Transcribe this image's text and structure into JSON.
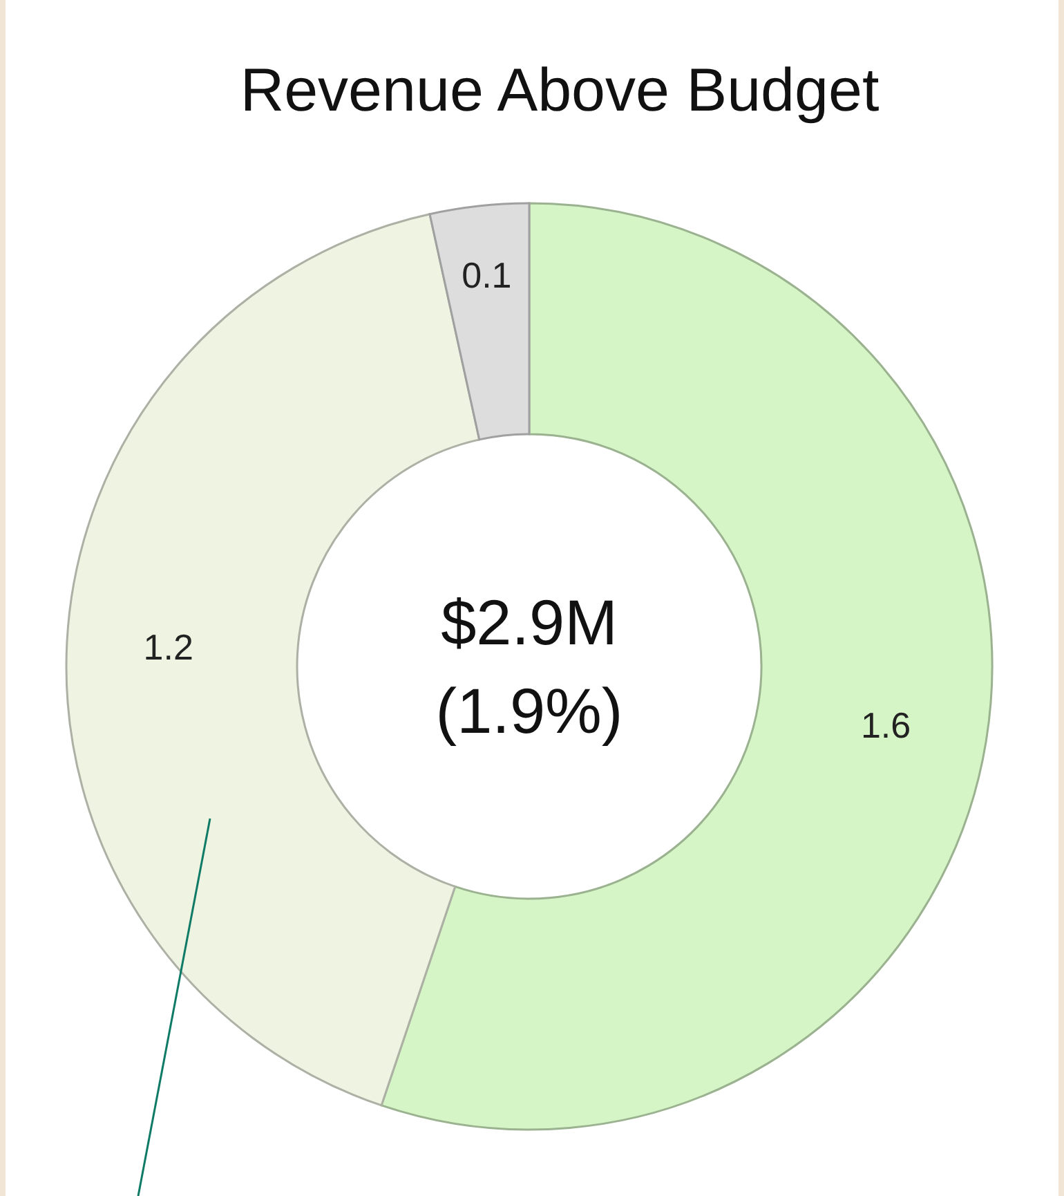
{
  "chart_data": {
    "type": "donut",
    "title": "Revenue Above Budget",
    "categories": [
      null,
      null,
      null
    ],
    "values": [
      1.6,
      1.2,
      0.1
    ],
    "colors": [
      "#d6f5c6",
      "#eef3e2",
      "#dddddd"
    ],
    "data_labels": true,
    "annotations": [
      "$2.9M",
      "(1.9%)"
    ]
  }
}
